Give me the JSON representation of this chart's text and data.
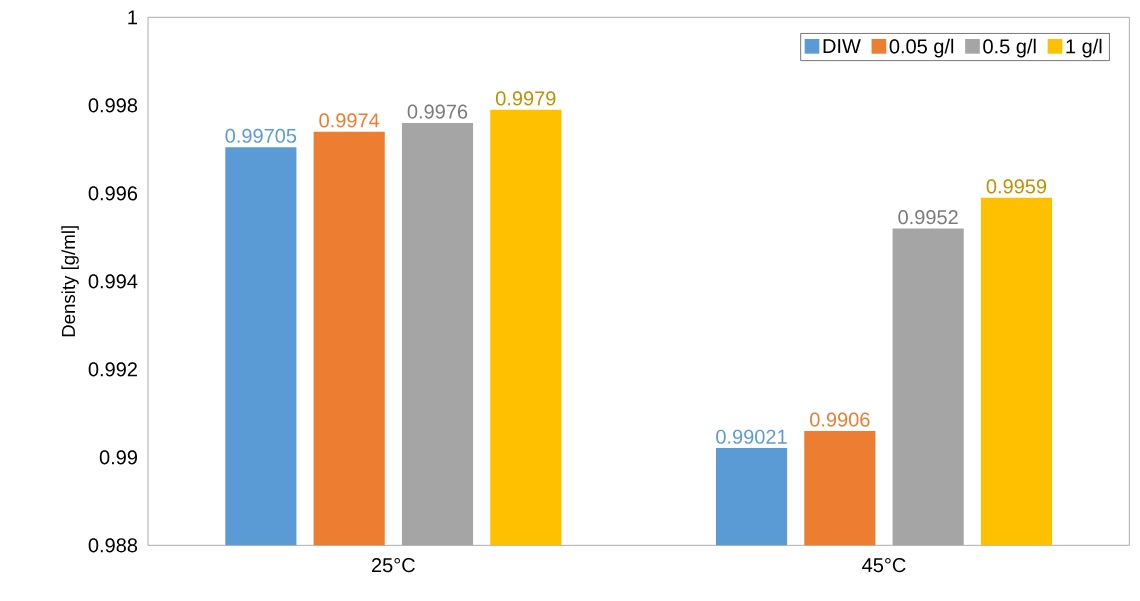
{
  "chart_data": {
    "type": "bar",
    "ylabel": "Density [g/ml]",
    "categories": [
      "25°C",
      "45°C"
    ],
    "series": [
      {
        "name": "DIW",
        "color": "#5b9bd5",
        "values": [
          0.99705,
          0.99021
        ]
      },
      {
        "name": "0.05 g/l",
        "color": "#ed7d31",
        "values": [
          0.9974,
          0.9906
        ]
      },
      {
        "name": "0.5 g/l",
        "color": "#a5a5a5",
        "values": [
          0.9976,
          0.9952
        ]
      },
      {
        "name": "1 g/l",
        "color": "#ffc000",
        "values": [
          0.9979,
          0.9959
        ]
      }
    ],
    "ylim": [
      0.988,
      1
    ],
    "yticks": [
      0.988,
      0.99,
      0.992,
      0.994,
      0.996,
      0.998,
      1
    ],
    "data_labels": true,
    "legend": "top right",
    "grid": false
  }
}
